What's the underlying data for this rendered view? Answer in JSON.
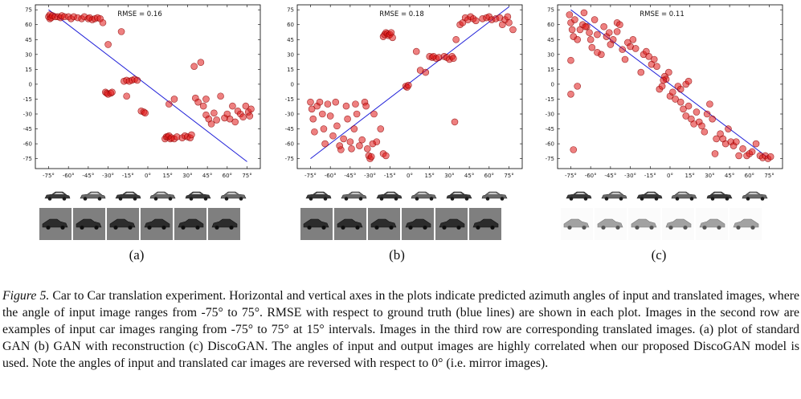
{
  "chart_data": [
    {
      "type": "scatter",
      "panel_label": "(a)",
      "annotation": "RMSE =  0.16",
      "xlabel": "",
      "ylabel": "",
      "xlim": [
        -85,
        85
      ],
      "ylim": [
        -85,
        80
      ],
      "xticks": [
        "-75°",
        "-60°",
        "-45°",
        "-30°",
        "-15°",
        "0°",
        "15°",
        "30°",
        "45°",
        "60°",
        "75°"
      ],
      "yticks": [
        "75",
        "60",
        "45",
        "30",
        "15",
        "0",
        "-15",
        "-30",
        "-45",
        "-60",
        "-75"
      ],
      "reference_line": [
        [
          -75,
          75
        ],
        [
          75,
          -78
        ]
      ],
      "points": [
        [
          -75,
          68
        ],
        [
          -74,
          66
        ],
        [
          -74,
          70
        ],
        [
          -73,
          67
        ],
        [
          -72,
          69
        ],
        [
          -70,
          68
        ],
        [
          -68,
          68
        ],
        [
          -66,
          67
        ],
        [
          -65,
          69
        ],
        [
          -63,
          68
        ],
        [
          -60,
          68
        ],
        [
          -58,
          66
        ],
        [
          -56,
          68
        ],
        [
          -53,
          67
        ],
        [
          -50,
          66
        ],
        [
          -48,
          68
        ],
        [
          -45,
          66
        ],
        [
          -44,
          67
        ],
        [
          -42,
          65
        ],
        [
          -40,
          66
        ],
        [
          -38,
          67
        ],
        [
          -36,
          66
        ],
        [
          -34,
          62
        ],
        [
          -30,
          40
        ],
        [
          -20,
          53
        ],
        [
          -32,
          -8
        ],
        [
          -31,
          -9
        ],
        [
          -30,
          -10
        ],
        [
          -28,
          -9
        ],
        [
          -27,
          -8
        ],
        [
          -16,
          -12
        ],
        [
          -18,
          3
        ],
        [
          -16,
          4
        ],
        [
          -14,
          3
        ],
        [
          -12,
          4
        ],
        [
          -10,
          5
        ],
        [
          -8,
          4
        ],
        [
          -5,
          -27
        ],
        [
          -3,
          -28
        ],
        [
          -2,
          -29
        ],
        [
          13,
          -55
        ],
        [
          14,
          -53
        ],
        [
          15,
          -53
        ],
        [
          16,
          -52
        ],
        [
          17,
          -55
        ],
        [
          18,
          -54
        ],
        [
          20,
          -55
        ],
        [
          22,
          -53
        ],
        [
          26,
          -54
        ],
        [
          28,
          -52
        ],
        [
          30,
          -53
        ],
        [
          32,
          -54
        ],
        [
          33,
          -51
        ],
        [
          35,
          18
        ],
        [
          40,
          22
        ],
        [
          36,
          -14
        ],
        [
          38,
          -18
        ],
        [
          42,
          -22
        ],
        [
          44,
          -31
        ],
        [
          46,
          -35
        ],
        [
          48,
          -40
        ],
        [
          50,
          -29
        ],
        [
          52,
          -36
        ],
        [
          55,
          -12
        ],
        [
          58,
          -34
        ],
        [
          60,
          -30
        ],
        [
          62,
          -35
        ],
        [
          64,
          -22
        ],
        [
          66,
          -38
        ],
        [
          68,
          -27
        ],
        [
          70,
          -30
        ],
        [
          72,
          -33
        ],
        [
          74,
          -22
        ],
        [
          76,
          -28
        ],
        [
          77,
          -32
        ],
        [
          78,
          -25
        ],
        [
          44,
          -15
        ],
        [
          20,
          -15
        ],
        [
          16,
          -20
        ]
      ]
    },
    {
      "type": "scatter",
      "panel_label": "(b)",
      "annotation": "RMSE =  0.18",
      "xlabel": "",
      "ylabel": "",
      "xlim": [
        -85,
        85
      ],
      "ylim": [
        -85,
        80
      ],
      "xticks": [
        "-75°",
        "-60°",
        "-45°",
        "-30°",
        "-15°",
        "0°",
        "15°",
        "30°",
        "45°",
        "60°",
        "75°"
      ],
      "yticks": [
        "75",
        "60",
        "45",
        "30",
        "15",
        "0",
        "-15",
        "-30",
        "-45",
        "-60",
        "-75"
      ],
      "reference_line": [
        [
          -75,
          -75
        ],
        [
          75,
          78
        ]
      ],
      "points": [
        [
          -75,
          -18
        ],
        [
          -74,
          -25
        ],
        [
          -73,
          -35
        ],
        [
          -72,
          -48
        ],
        [
          -70,
          -22
        ],
        [
          -68,
          -18
        ],
        [
          -66,
          -30
        ],
        [
          -65,
          -45
        ],
        [
          -64,
          -60
        ],
        [
          -62,
          -20
        ],
        [
          -60,
          -32
        ],
        [
          -58,
          -52
        ],
        [
          -56,
          -18
        ],
        [
          -55,
          -42
        ],
        [
          -53,
          -62
        ],
        [
          -52,
          -66
        ],
        [
          -50,
          -55
        ],
        [
          -48,
          -22
        ],
        [
          -47,
          -35
        ],
        [
          -45,
          -58
        ],
        [
          -44,
          -65
        ],
        [
          -42,
          -45
        ],
        [
          -41,
          -20
        ],
        [
          -40,
          -30
        ],
        [
          -38,
          -62
        ],
        [
          -36,
          -56
        ],
        [
          -34,
          -18
        ],
        [
          -33,
          -22
        ],
        [
          -32,
          -65
        ],
        [
          -31,
          -72
        ],
        [
          -30,
          -75
        ],
        [
          -29,
          -73
        ],
        [
          -28,
          -60
        ],
        [
          -27,
          -30
        ],
        [
          -25,
          -58
        ],
        [
          -22,
          -45
        ],
        [
          -20,
          -70
        ],
        [
          -18,
          -72
        ],
        [
          -20,
          48
        ],
        [
          -19,
          50
        ],
        [
          -18,
          52
        ],
        [
          -17,
          51
        ],
        [
          -16,
          49
        ],
        [
          -15,
          50
        ],
        [
          -14,
          52
        ],
        [
          -13,
          47
        ],
        [
          -3,
          -2
        ],
        [
          -2,
          -3
        ],
        [
          -1,
          -1
        ],
        [
          5,
          33
        ],
        [
          15,
          28
        ],
        [
          17,
          27
        ],
        [
          18,
          28
        ],
        [
          20,
          26
        ],
        [
          22,
          27
        ],
        [
          26,
          28
        ],
        [
          28,
          27
        ],
        [
          30,
          25
        ],
        [
          32,
          28
        ],
        [
          33,
          26
        ],
        [
          34,
          -38
        ],
        [
          35,
          45
        ],
        [
          38,
          60
        ],
        [
          40,
          62
        ],
        [
          42,
          67
        ],
        [
          44,
          65
        ],
        [
          46,
          68
        ],
        [
          48,
          66
        ],
        [
          50,
          64
        ],
        [
          55,
          66
        ],
        [
          58,
          67
        ],
        [
          60,
          68
        ],
        [
          62,
          65
        ],
        [
          65,
          66
        ],
        [
          68,
          67
        ],
        [
          70,
          60
        ],
        [
          72,
          65
        ],
        [
          74,
          68
        ],
        [
          75,
          62
        ],
        [
          78,
          55
        ],
        [
          8,
          14
        ],
        [
          12,
          12
        ]
      ]
    },
    {
      "type": "scatter",
      "panel_label": "(c)",
      "annotation": "RMSE =  0.11",
      "xlabel": "",
      "ylabel": "",
      "xlim": [
        -85,
        85
      ],
      "ylim": [
        -85,
        80
      ],
      "xticks": [
        "-75°",
        "-60°",
        "-45°",
        "-30°",
        "-15°",
        "0°",
        "15°",
        "30°",
        "45°",
        "60°",
        "75°"
      ],
      "yticks": [
        "75",
        "60",
        "45",
        "30",
        "15",
        "0",
        "-15",
        "-30",
        "-45",
        "-60",
        "-75"
      ],
      "reference_line": [
        [
          -75,
          75
        ],
        [
          75,
          -75
        ]
      ],
      "points": [
        [
          -76,
          70
        ],
        [
          -75,
          62
        ],
        [
          -74,
          55
        ],
        [
          -73,
          48
        ],
        [
          -72,
          65
        ],
        [
          -75,
          24
        ],
        [
          -75,
          -10
        ],
        [
          -73,
          -66
        ],
        [
          -70,
          45
        ],
        [
          -68,
          55
        ],
        [
          -66,
          60
        ],
        [
          -65,
          72
        ],
        [
          -63,
          58
        ],
        [
          -61,
          52
        ],
        [
          -60,
          45
        ],
        [
          -59,
          37
        ],
        [
          -57,
          65
        ],
        [
          -55,
          50
        ],
        [
          -52,
          30
        ],
        [
          -50,
          58
        ],
        [
          -48,
          48
        ],
        [
          -46,
          52
        ],
        [
          -45,
          40
        ],
        [
          -43,
          45
        ],
        [
          -40,
          62
        ],
        [
          -38,
          60
        ],
        [
          -36,
          35
        ],
        [
          -34,
          25
        ],
        [
          -32,
          42
        ],
        [
          -30,
          38
        ],
        [
          -28,
          45
        ],
        [
          -26,
          36
        ],
        [
          -22,
          12
        ],
        [
          -20,
          30
        ],
        [
          -18,
          33
        ],
        [
          -16,
          28
        ],
        [
          -14,
          20
        ],
        [
          -12,
          25
        ],
        [
          -10,
          18
        ],
        [
          -8,
          -5
        ],
        [
          -6,
          -2
        ],
        [
          -4,
          8
        ],
        [
          -3,
          5
        ],
        [
          -1,
          12
        ],
        [
          0,
          -12
        ],
        [
          2,
          -8
        ],
        [
          4,
          -15
        ],
        [
          6,
          -2
        ],
        [
          8,
          -18
        ],
        [
          10,
          -25
        ],
        [
          12,
          -32
        ],
        [
          14,
          -22
        ],
        [
          16,
          -35
        ],
        [
          18,
          -40
        ],
        [
          20,
          -28
        ],
        [
          22,
          -38
        ],
        [
          24,
          -42
        ],
        [
          26,
          -48
        ],
        [
          28,
          -30
        ],
        [
          30,
          -20
        ],
        [
          32,
          -35
        ],
        [
          35,
          -55
        ],
        [
          38,
          -50
        ],
        [
          40,
          -55
        ],
        [
          42,
          -60
        ],
        [
          44,
          -45
        ],
        [
          46,
          -58
        ],
        [
          48,
          -62
        ],
        [
          50,
          -58
        ],
        [
          52,
          -72
        ],
        [
          55,
          -65
        ],
        [
          58,
          -72
        ],
        [
          60,
          -70
        ],
        [
          62,
          -68
        ],
        [
          65,
          -60
        ],
        [
          68,
          -72
        ],
        [
          70,
          -74
        ],
        [
          72,
          -72
        ],
        [
          74,
          -75
        ],
        [
          76,
          -73
        ],
        [
          -70,
          -2
        ],
        [
          -64,
          58
        ],
        [
          -55,
          32
        ],
        [
          -40,
          53
        ],
        [
          12,
          0
        ],
        [
          14,
          3
        ],
        [
          34,
          -70
        ],
        [
          -5,
          4
        ],
        [
          8,
          -5
        ]
      ]
    }
  ],
  "caption": {
    "figure_label": "Figure 5.",
    "text": " Car to Car translation experiment. Horizontal and vertical axes in the plots indicate predicted azimuth angles of input and translated images, where the angle of input image ranges from -75° to 75°. RMSE with respect to ground truth (blue lines) are shown in each plot. Images in the second row are examples of input car images ranging from -75° to 75° at 15° intervals. Images in the third row are corresponding translated images. (a) plot of standard GAN (b) GAN with reconstruction (c) DiscoGAN. The angles of input and output images are highly correlated when our proposed DiscoGAN model is used. Note the angles of input and translated car images are reversed with respect to 0° (i.e. mirror images)."
  },
  "colors": {
    "point_fill": "#e01818",
    "point_stroke": "#8a0000",
    "line": "#1f1fd8",
    "tile_gray": "#7f7f7f"
  }
}
